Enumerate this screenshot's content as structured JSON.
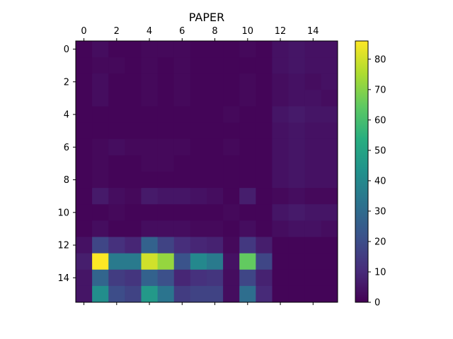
{
  "chart_data": {
    "type": "heatmap",
    "title": "PAPER",
    "xlabel": "",
    "ylabel": "",
    "x_ticks": [
      "0",
      "2",
      "4",
      "6",
      "8",
      "10",
      "12",
      "14"
    ],
    "y_ticks": [
      "0",
      "2",
      "4",
      "6",
      "8",
      "10",
      "12",
      "14"
    ],
    "x_tick_values": [
      0,
      2,
      4,
      6,
      8,
      10,
      12,
      14
    ],
    "y_tick_values": [
      0,
      2,
      4,
      6,
      8,
      10,
      12,
      14
    ],
    "rows": 16,
    "cols": 16,
    "colormap": "viridis",
    "vmin": 0,
    "vmax": 86,
    "colorbar_ticks": [
      "0",
      "10",
      "20",
      "30",
      "40",
      "50",
      "60",
      "70",
      "80"
    ],
    "colorbar_tick_values": [
      0,
      10,
      20,
      30,
      40,
      50,
      60,
      70,
      80
    ],
    "grid": false,
    "values": [
      [
        1,
        3,
        1,
        1,
        2,
        2,
        2,
        1,
        1,
        1,
        2,
        1,
        4,
        5,
        4,
        4
      ],
      [
        1,
        2,
        2,
        1,
        2,
        1,
        2,
        1,
        1,
        1,
        1,
        1,
        4,
        5,
        4,
        4
      ],
      [
        1,
        3,
        1,
        1,
        2,
        1,
        2,
        1,
        1,
        1,
        2,
        1,
        3,
        4,
        3,
        4
      ],
      [
        1,
        3,
        1,
        1,
        2,
        1,
        2,
        1,
        1,
        1,
        2,
        1,
        3,
        4,
        4,
        3
      ],
      [
        1,
        1,
        1,
        1,
        1,
        1,
        1,
        1,
        1,
        2,
        1,
        1,
        5,
        6,
        5,
        5
      ],
      [
        1,
        1,
        1,
        1,
        1,
        1,
        1,
        1,
        1,
        1,
        1,
        1,
        4,
        5,
        4,
        4
      ],
      [
        1,
        2,
        3,
        2,
        2,
        2,
        2,
        1,
        1,
        2,
        1,
        1,
        4,
        5,
        4,
        4
      ],
      [
        1,
        2,
        1,
        1,
        2,
        2,
        1,
        1,
        1,
        1,
        1,
        1,
        4,
        5,
        4,
        4
      ],
      [
        1,
        2,
        1,
        1,
        1,
        1,
        1,
        1,
        1,
        1,
        1,
        1,
        4,
        5,
        4,
        4
      ],
      [
        1,
        6,
        3,
        2,
        6,
        5,
        5,
        4,
        3,
        1,
        7,
        1,
        2,
        3,
        2,
        2
      ],
      [
        1,
        1,
        2,
        1,
        1,
        1,
        1,
        1,
        1,
        2,
        1,
        1,
        5,
        6,
        5,
        5
      ],
      [
        1,
        3,
        1,
        1,
        3,
        3,
        3,
        2,
        2,
        1,
        3,
        1,
        3,
        4,
        4,
        3
      ],
      [
        4,
        18,
        12,
        9,
        27,
        17,
        11,
        9,
        8,
        2,
        14,
        7,
        1,
        1,
        1,
        1
      ],
      [
        7,
        86,
        35,
        35,
        80,
        72,
        22,
        40,
        35,
        4,
        65,
        18,
        1,
        1,
        1,
        1
      ],
      [
        5,
        28,
        15,
        13,
        27,
        21,
        9,
        12,
        13,
        3,
        18,
        8,
        1,
        1,
        1,
        1
      ],
      [
        5,
        42,
        20,
        17,
        46,
        33,
        15,
        17,
        17,
        3,
        31,
        10,
        1,
        1,
        1,
        1
      ]
    ]
  }
}
